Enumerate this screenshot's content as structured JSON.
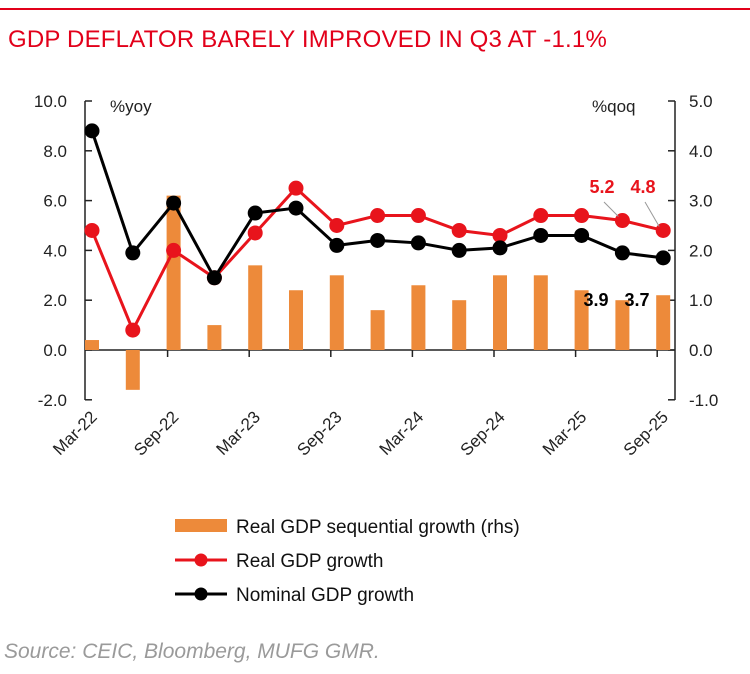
{
  "title": "GDP DEFLATOR BARELY IMPROVED IN Q3 AT -1.1%",
  "source": "Source: CEIC, Bloomberg, MUFG GMR.",
  "chart_data": {
    "type": "bar+line",
    "categories": [
      "Mar-22",
      "Jun-22",
      "Sep-22",
      "Dec-22",
      "Mar-23",
      "Jun-23",
      "Sep-23",
      "Dec-23",
      "Mar-24",
      "Jun-24",
      "Sep-24",
      "Dec-24",
      "Mar-25",
      "Jun-25",
      "Sep-25"
    ],
    "x_tick_labels": [
      "Mar-22",
      "Sep-22",
      "Mar-23",
      "Sep-23",
      "Mar-24",
      "Sep-24",
      "Mar-25",
      "Sep-25"
    ],
    "left_axis": {
      "label": "%yoy",
      "ylim": [
        -2,
        10
      ],
      "ticks": [
        "10.0",
        "8.0",
        "6.0",
        "4.0",
        "2.0",
        "0.0",
        "-2.0"
      ]
    },
    "right_axis": {
      "label": "%qoq",
      "ylim": [
        -1,
        5
      ],
      "ticks": [
        "5.0",
        "4.0",
        "3.0",
        "2.0",
        "1.0",
        "0.0",
        "-1.0"
      ]
    },
    "series": [
      {
        "name": "Real GDP sequential growth (rhs)",
        "type": "bar",
        "axis": "right",
        "color": "#ed8a3a",
        "values": [
          0.2,
          -0.8,
          3.1,
          0.5,
          1.7,
          1.2,
          1.5,
          0.8,
          1.3,
          1.0,
          1.5,
          1.5,
          1.2,
          1.0,
          1.1
        ]
      },
      {
        "name": "Real GDP growth",
        "type": "line",
        "axis": "left",
        "color": "#e8141c",
        "values": [
          4.8,
          0.8,
          4.0,
          2.9,
          4.7,
          6.5,
          5.0,
          5.4,
          5.4,
          4.8,
          4.6,
          5.4,
          5.4,
          5.2,
          4.8
        ]
      },
      {
        "name": "Nominal GDP growth",
        "type": "line",
        "axis": "left",
        "color": "#000000",
        "values": [
          8.8,
          3.9,
          5.9,
          2.9,
          5.5,
          5.7,
          4.2,
          4.4,
          4.3,
          4.0,
          4.1,
          4.6,
          4.6,
          3.9,
          3.7
        ]
      }
    ],
    "annotations": [
      {
        "text": "5.2",
        "series": "Real GDP growth",
        "category": "Jun-25",
        "color": "#e8141c"
      },
      {
        "text": "4.8",
        "series": "Real GDP growth",
        "category": "Sep-25",
        "color": "#e8141c"
      },
      {
        "text": "3.9",
        "series": "Nominal GDP growth",
        "category": "Jun-25",
        "color": "#000000"
      },
      {
        "text": "3.7",
        "series": "Nominal GDP growth",
        "category": "Sep-25",
        "color": "#000000"
      }
    ],
    "legend": "bottom"
  }
}
